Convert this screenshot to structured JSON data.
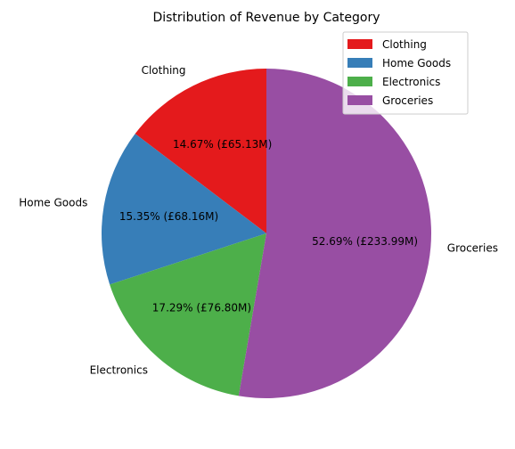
{
  "chart_data": {
    "type": "pie",
    "title": "Distribution of Revenue by Category",
    "categories": [
      "Clothing",
      "Home Goods",
      "Electronics",
      "Groceries"
    ],
    "values": [
      65.13,
      68.16,
      76.8,
      233.99
    ],
    "percent_labels": [
      "14.67% (£65.13M)",
      "15.35% (£68.16M)",
      "17.29% (£76.80M)",
      "52.69% (£233.99M)"
    ],
    "colors": [
      "#e41a1c",
      "#377eb8",
      "#4daf4a",
      "#984ea3"
    ],
    "start_angle_deg": 90,
    "direction": "counterclockwise",
    "legend": {
      "placement": "top-right",
      "entries": [
        "Clothing",
        "Home Goods",
        "Electronics",
        "Groceries"
      ]
    }
  }
}
